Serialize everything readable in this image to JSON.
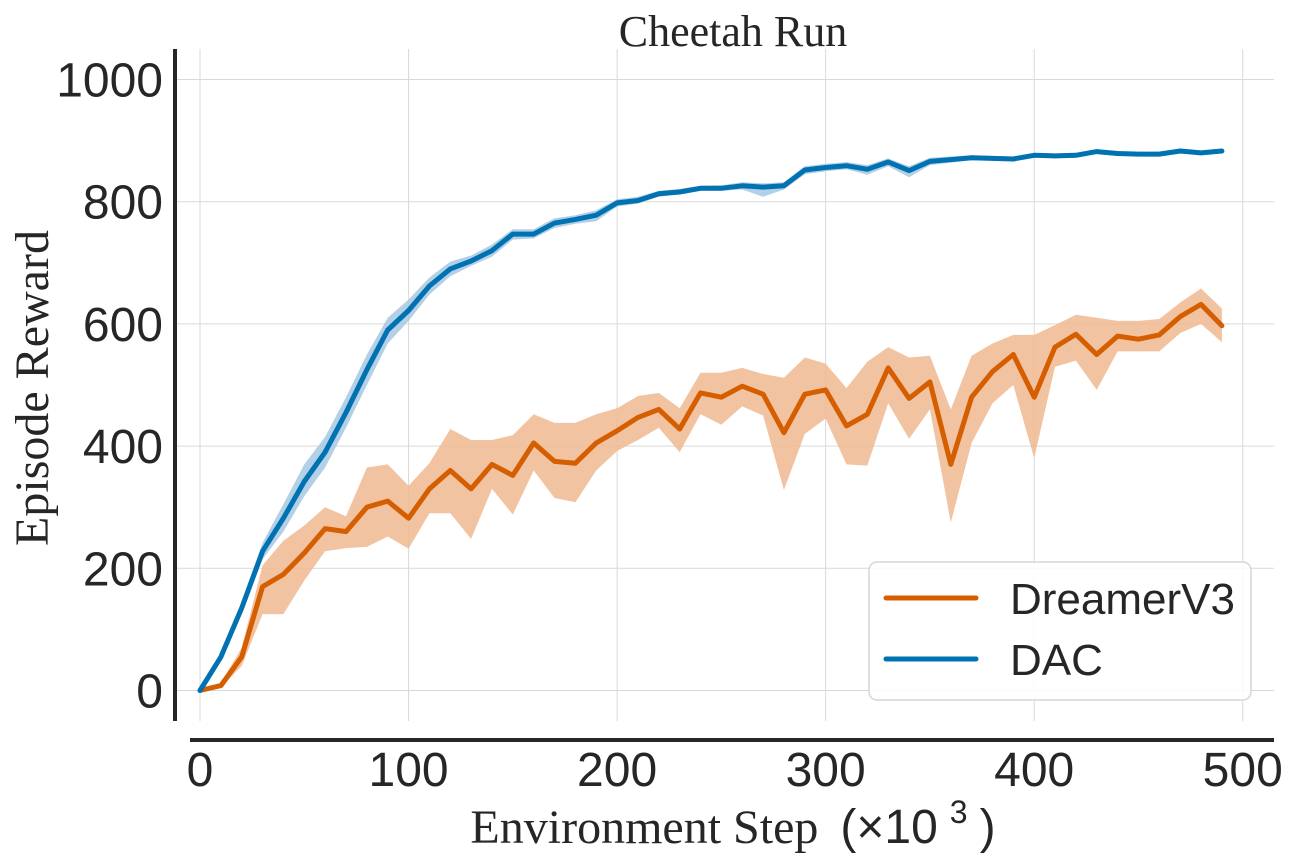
{
  "chart_data": {
    "type": "line",
    "title": "Cheetah Run",
    "xlabel": "Environment Step",
    "xlabel_suffix": "(×10",
    "xlabel_exponent": "3",
    "xlabel_close": ")",
    "ylabel": "Episode Reward",
    "xlim": [
      -12,
      515
    ],
    "ylim": [
      -50,
      1050
    ],
    "xticks": [
      0,
      100,
      200,
      300,
      400,
      500
    ],
    "xtick_labels": [
      "0",
      "100",
      "200",
      "300",
      "400",
      "500"
    ],
    "yticks": [
      0,
      200,
      400,
      600,
      800,
      1000
    ],
    "ytick_labels": [
      "0",
      "200",
      "400",
      "600",
      "800",
      "1000"
    ],
    "grid": true,
    "legend_position": "lower-right",
    "x": [
      0,
      10,
      20,
      30,
      40,
      50,
      60,
      70,
      80,
      90,
      100,
      110,
      120,
      130,
      140,
      150,
      160,
      170,
      180,
      190,
      200,
      210,
      220,
      230,
      240,
      250,
      260,
      270,
      280,
      290,
      300,
      310,
      320,
      330,
      340,
      350,
      360,
      370,
      380,
      390,
      400,
      410,
      420,
      430,
      440,
      450,
      460,
      470,
      480,
      490
    ],
    "series": [
      {
        "name": "DreamerV3",
        "color": "#d55e00",
        "band_color": "#f0b890",
        "values": [
          0,
          8,
          55,
          170,
          190,
          225,
          265,
          260,
          300,
          310,
          282,
          330,
          360,
          330,
          370,
          352,
          405,
          375,
          372,
          405,
          425,
          447,
          460,
          428,
          487,
          480,
          498,
          485,
          422,
          485,
          492,
          433,
          452,
          528,
          478,
          505,
          370,
          480,
          522,
          550,
          480,
          562,
          583,
          550,
          580,
          575,
          582,
          612,
          632,
          597
        ],
        "lower": [
          0,
          5,
          40,
          125,
          125,
          180,
          228,
          233,
          235,
          252,
          232,
          290,
          290,
          248,
          330,
          288,
          360,
          315,
          308,
          360,
          392,
          410,
          430,
          390,
          452,
          435,
          465,
          450,
          328,
          420,
          445,
          370,
          368,
          470,
          412,
          460,
          275,
          405,
          470,
          500,
          380,
          530,
          540,
          492,
          555,
          555,
          555,
          585,
          600,
          570
        ],
        "upper": [
          0,
          12,
          70,
          205,
          245,
          270,
          300,
          285,
          365,
          370,
          335,
          372,
          428,
          410,
          410,
          418,
          452,
          438,
          438,
          452,
          462,
          482,
          487,
          462,
          520,
          520,
          528,
          518,
          512,
          545,
          535,
          495,
          538,
          562,
          545,
          548,
          460,
          548,
          568,
          582,
          582,
          598,
          615,
          610,
          605,
          605,
          608,
          635,
          658,
          625
        ]
      },
      {
        "name": "DAC",
        "color": "#0072b2",
        "band_color": "#a6c8e2",
        "values": [
          0,
          55,
          135,
          228,
          282,
          342,
          390,
          455,
          525,
          590,
          622,
          662,
          690,
          703,
          720,
          747,
          747,
          765,
          771,
          778,
          798,
          802,
          813,
          816,
          822,
          822,
          826,
          824,
          826,
          852,
          856,
          859,
          853,
          865,
          851,
          866,
          869,
          872,
          871,
          870,
          876,
          875,
          876,
          882,
          879,
          878,
          878,
          883,
          880,
          883
        ],
        "lower": [
          0,
          50,
          125,
          215,
          260,
          318,
          365,
          430,
          500,
          568,
          605,
          648,
          678,
          695,
          710,
          738,
          740,
          757,
          764,
          768,
          792,
          797,
          808,
          812,
          818,
          818,
          820,
          808,
          820,
          845,
          850,
          853,
          844,
          858,
          840,
          860,
          864,
          868,
          867,
          866,
          873,
          871,
          872,
          879,
          876,
          875,
          875,
          880,
          877,
          880
        ],
        "upper": [
          0,
          60,
          145,
          242,
          305,
          370,
          415,
          480,
          550,
          610,
          640,
          676,
          702,
          712,
          730,
          755,
          755,
          773,
          778,
          786,
          804,
          808,
          818,
          821,
          826,
          827,
          832,
          830,
          832,
          858,
          862,
          865,
          860,
          871,
          858,
          872,
          874,
          876,
          875,
          874,
          880,
          879,
          880,
          885,
          882,
          881,
          881,
          886,
          883,
          886
        ]
      }
    ]
  }
}
